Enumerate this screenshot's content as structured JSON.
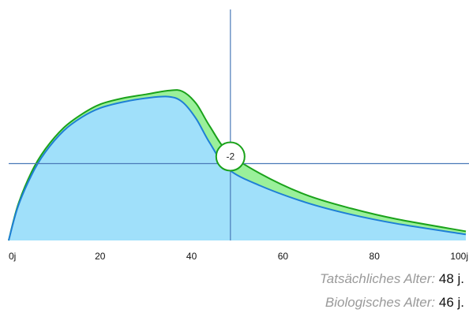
{
  "chart_data": {
    "type": "area",
    "x_ticks": [
      "0j",
      "20",
      "40",
      "60",
      "80",
      "100j"
    ],
    "xlim": [
      0,
      100
    ],
    "series": [
      {
        "color": "#1e7fd6",
        "fill": "#a0e0fa",
        "x": [
          0,
          2,
          5,
          8,
          12,
          16,
          20,
          25,
          30,
          35,
          38,
          41,
          44,
          48,
          55,
          65,
          75,
          85,
          100
        ],
        "y": [
          0.0,
          0.22,
          0.43,
          0.58,
          0.72,
          0.81,
          0.87,
          0.91,
          0.935,
          0.945,
          0.91,
          0.8,
          0.64,
          0.47,
          0.36,
          0.25,
          0.17,
          0.11,
          0.04
        ]
      },
      {
        "color": "#1aa21a",
        "fill": "#9af09a",
        "x": [
          0,
          2,
          5,
          8,
          12,
          16,
          20,
          25,
          30,
          35,
          38,
          41,
          44,
          48,
          55,
          65,
          75,
          85,
          100
        ],
        "y": [
          0.0,
          0.23,
          0.45,
          0.6,
          0.74,
          0.83,
          0.895,
          0.935,
          0.96,
          0.985,
          0.98,
          0.9,
          0.75,
          0.58,
          0.44,
          0.3,
          0.21,
          0.14,
          0.06
        ]
      }
    ],
    "crosshair": {
      "x": 48.5,
      "y": 0.505
    },
    "marker_label": "-2"
  },
  "info": {
    "actual_label": "Tatsächliches Alter:",
    "actual_value": "48 j.",
    "bio_label": "Biologisches Alter:",
    "bio_value": "46 j."
  }
}
